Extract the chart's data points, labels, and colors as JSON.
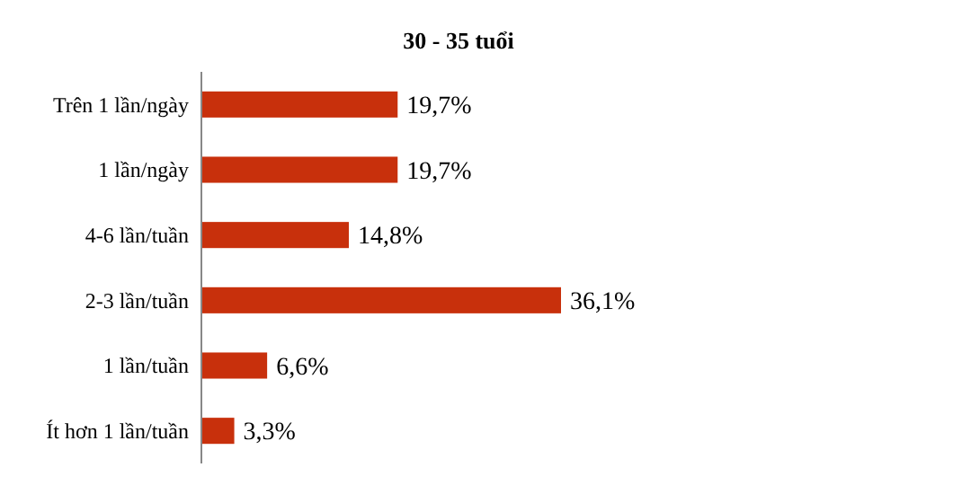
{
  "chart_data": {
    "type": "bar",
    "orientation": "horizontal",
    "title": "30 - 35 tuổi",
    "categories": [
      "Trên 1 lần/ngày",
      "1 lần/ngày",
      "4-6 lần/tuần",
      "2-3 lần/tuần",
      "1 lần/tuần",
      "Ít hơn 1 lần/tuần"
    ],
    "values": [
      19.7,
      19.7,
      14.8,
      36.1,
      6.6,
      3.3
    ],
    "value_labels": [
      "19,7%",
      "19,7%",
      "14,8%",
      "36,1%",
      "6,6%",
      "3,3%"
    ],
    "color": "#c8300c"
  }
}
